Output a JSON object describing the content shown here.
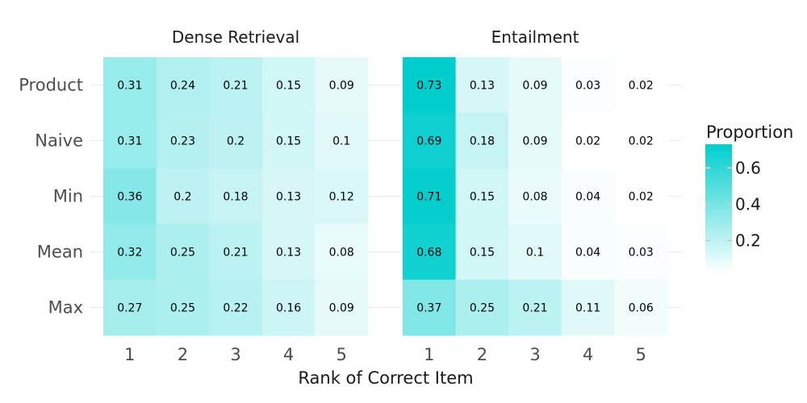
{
  "chart_data": {
    "type": "heatmap",
    "xlabel": "Rank of Correct Item",
    "x_categories": [
      "1",
      "2",
      "3",
      "4",
      "5"
    ],
    "y_categories": [
      "Product",
      "Naive",
      "Min",
      "Mean",
      "Max"
    ],
    "legend": {
      "title": "Proportion",
      "placement": "right",
      "ticks": [
        "0.2",
        "0.4",
        "0.6"
      ],
      "tick_values": [
        0.2,
        0.4,
        0.6
      ],
      "range": [
        0.02,
        0.73
      ],
      "color_low": "#ffffff",
      "color_high": "#00cdcd"
    },
    "panels": [
      {
        "title": "Dense Retrieval",
        "values": [
          [
            0.31,
            0.24,
            0.21,
            0.15,
            0.09
          ],
          [
            0.31,
            0.23,
            0.2,
            0.15,
            0.1
          ],
          [
            0.36,
            0.2,
            0.18,
            0.13,
            0.12
          ],
          [
            0.32,
            0.25,
            0.21,
            0.13,
            0.08
          ],
          [
            0.27,
            0.25,
            0.22,
            0.16,
            0.09
          ]
        ]
      },
      {
        "title": "Entailment",
        "values": [
          [
            0.73,
            0.13,
            0.09,
            0.03,
            0.02
          ],
          [
            0.69,
            0.18,
            0.09,
            0.02,
            0.02
          ],
          [
            0.71,
            0.15,
            0.08,
            0.04,
            0.02
          ],
          [
            0.68,
            0.15,
            0.1,
            0.04,
            0.03
          ],
          [
            0.37,
            0.25,
            0.21,
            0.11,
            0.06
          ]
        ]
      }
    ]
  }
}
